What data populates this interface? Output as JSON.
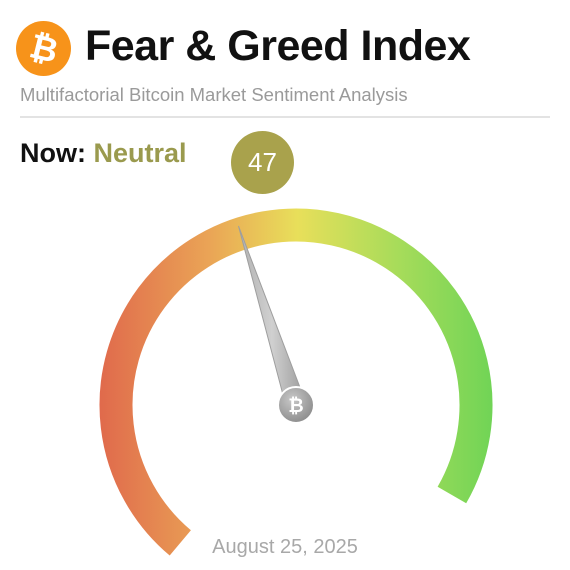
{
  "header": {
    "logo_icon": "bitcoin-icon",
    "logo_symbol": "₿",
    "title": "Fear & Greed Index",
    "subtitle": "Multifactorial Bitcoin Market Sentiment Analysis"
  },
  "status": {
    "now_label": "Now:",
    "sentiment": "Neutral",
    "score": "47"
  },
  "gauge": {
    "value": 47,
    "min": 0,
    "max": 100,
    "hub_icon": "bitcoin-icon",
    "hub_symbol": "₿"
  },
  "footer": {
    "date": "August 25, 2025"
  },
  "colors": {
    "bitcoin_orange": "#f7931a",
    "neutral_text": "#9a9a4e",
    "score_badge": "#a9a24c",
    "fear_red": "#e06a4c",
    "mid_yellow": "#e8df5a",
    "greed_green": "#6fd456"
  }
}
